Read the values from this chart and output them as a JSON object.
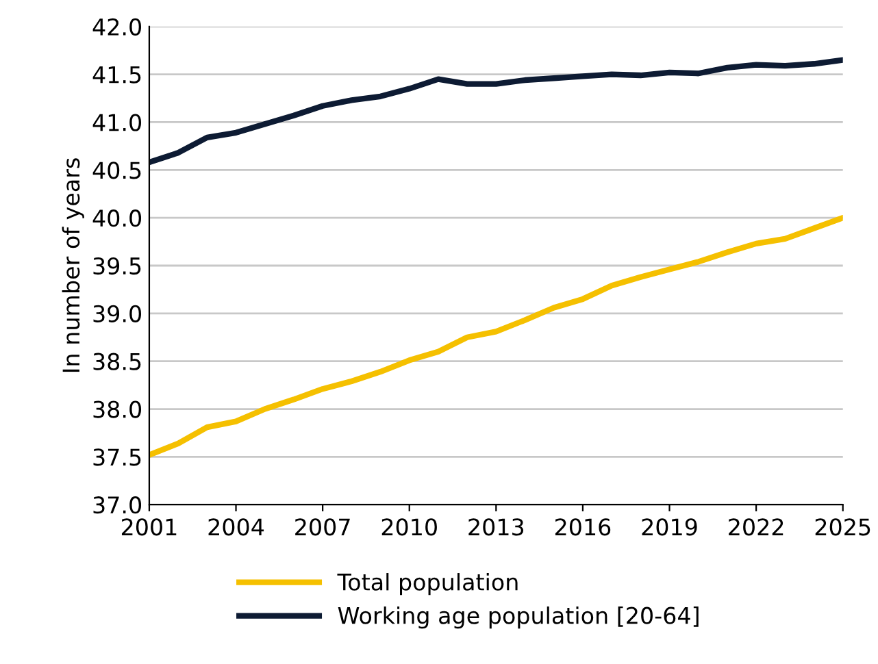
{
  "chart_data": {
    "type": "line",
    "ylabel": "In number of years",
    "x": [
      2001,
      2002,
      2003,
      2004,
      2005,
      2006,
      2007,
      2008,
      2009,
      2010,
      2011,
      2012,
      2013,
      2014,
      2015,
      2016,
      2017,
      2018,
      2019,
      2020,
      2021,
      2022,
      2023,
      2024,
      2025
    ],
    "series": [
      {
        "name": "Total population",
        "color": "#f5c000",
        "values": [
          37.52,
          37.64,
          37.81,
          37.87,
          38.0,
          38.1,
          38.21,
          38.29,
          38.39,
          38.51,
          38.6,
          38.75,
          38.81,
          38.93,
          39.06,
          39.15,
          39.29,
          39.38,
          39.46,
          39.54,
          39.64,
          39.73,
          39.78,
          39.89,
          40.0
        ]
      },
      {
        "name": "Working age population [20-64]",
        "color": "#0d1b33",
        "values": [
          40.58,
          40.68,
          40.84,
          40.89,
          40.98,
          41.07,
          41.17,
          41.23,
          41.27,
          41.35,
          41.45,
          41.4,
          41.4,
          41.44,
          41.46,
          41.48,
          41.5,
          41.49,
          41.52,
          41.51,
          41.57,
          41.6,
          41.59,
          41.61,
          41.65
        ]
      }
    ],
    "xlim": [
      2001,
      2025
    ],
    "xticks": [
      2001,
      2004,
      2007,
      2010,
      2013,
      2016,
      2019,
      2022,
      2025
    ],
    "ylim": [
      37,
      42
    ],
    "yticks": [
      {
        "value": 37,
        "label": "37.0"
      },
      {
        "value": 37.5,
        "label": "37.5"
      },
      {
        "value": 38,
        "label": "38.0"
      },
      {
        "value": 38.5,
        "label": "38.5"
      },
      {
        "value": 39,
        "label": "39.0"
      },
      {
        "value": 39.5,
        "label": "39.5"
      },
      {
        "value": 40,
        "label": "40.0"
      },
      {
        "value": 40.5,
        "label": "40.5"
      },
      {
        "value": 41,
        "label": "41.0"
      },
      {
        "value": 41.5,
        "label": "41.5"
      },
      {
        "value": 42,
        "label": "42.0"
      }
    ],
    "grid": "y",
    "legend": "bottom",
    "marker": "none",
    "line_style": "solid"
  }
}
